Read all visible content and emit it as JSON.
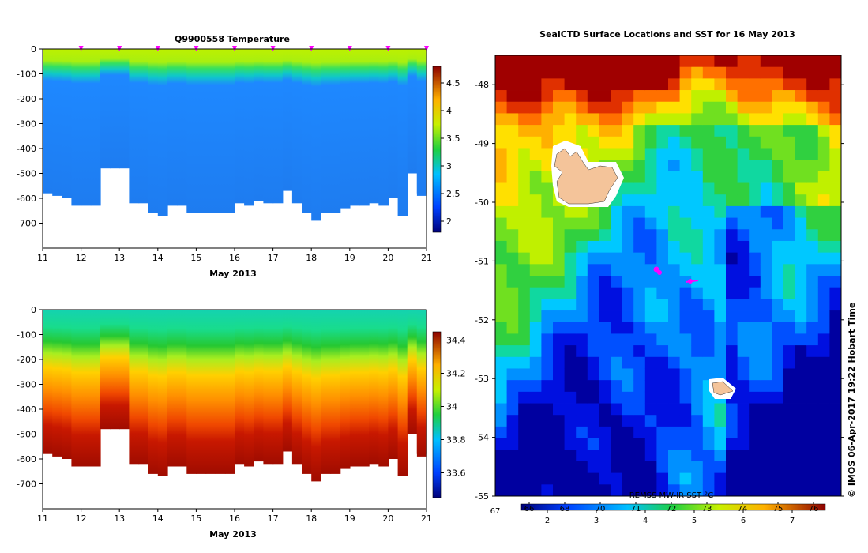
{
  "top_chart": {
    "title": "Q9900558  Temperature",
    "xlabel": "May 2013",
    "x_ticks": [
      "11",
      "12",
      "13",
      "14",
      "15",
      "16",
      "17",
      "18",
      "19",
      "20",
      "21"
    ],
    "y_ticks": [
      "0",
      "-100",
      "-200",
      "-300",
      "-400",
      "-500",
      "-600",
      "-700"
    ],
    "colorbar_ticks": [
      "4.5",
      "4",
      "3.5",
      "3",
      "2.5",
      "2"
    ]
  },
  "bottom_chart": {
    "xlabel": "May 2013",
    "x_ticks": [
      "11",
      "12",
      "13",
      "14",
      "15",
      "16",
      "17",
      "18",
      "19",
      "20",
      "21"
    ],
    "y_ticks": [
      "0",
      "-100",
      "-200",
      "-300",
      "-400",
      "-500",
      "-600",
      "-700"
    ],
    "colorbar_ticks": [
      "34.4",
      "34.2",
      "34",
      "33.8",
      "33.6"
    ]
  },
  "map": {
    "title": "SealCTD Surface Locations and SST for 16 May 2013",
    "lat_ticks": [
      "-48",
      "-49",
      "-50",
      "-51",
      "-52",
      "-53",
      "-54",
      "-55"
    ],
    "left_label": "67",
    "colorbar_label": "REMSS MW-IR SST °C",
    "colorbar_top_ticks": [
      "66",
      "68",
      "70",
      "71",
      "72",
      "73",
      "74",
      "75",
      "76"
    ],
    "colorbar_bottom_ticks": [
      "2",
      "3",
      "4",
      "5",
      "6",
      "7"
    ],
    "credit": "© IMOS 06-Apr-2017 19:22 Hobart Time",
    "colors": {
      "marker": "#ff00ff",
      "land": "#f4c49a"
    }
  },
  "chart_data": [
    {
      "type": "heatmap",
      "title": "Q9900558  Temperature",
      "xlabel": "May 2013",
      "ylabel": "",
      "xlim": [
        11,
        21
      ],
      "ylim": [
        -800,
        0
      ],
      "colorbar_range": [
        1.8,
        4.8
      ],
      "profile_days": [
        11.0,
        11.25,
        11.5,
        11.75,
        12.0,
        12.25,
        12.5,
        12.75,
        13.0,
        13.25,
        13.5,
        13.75,
        14.0,
        14.25,
        14.5,
        14.75,
        15.0,
        15.25,
        15.5,
        15.75,
        16.0,
        16.25,
        16.5,
        16.75,
        17.0,
        17.25,
        17.5,
        17.75,
        18.0,
        18.25,
        18.5,
        18.75,
        19.0,
        19.25,
        19.5,
        19.75,
        20.0,
        20.25,
        20.5,
        20.75,
        21.0
      ],
      "max_depth_m": [
        -580,
        -590,
        -600,
        -630,
        -630,
        -630,
        -480,
        -480,
        -480,
        -620,
        -620,
        -660,
        -670,
        -630,
        -630,
        -660,
        -660,
        -660,
        -660,
        -660,
        -620,
        -630,
        -610,
        -620,
        -620,
        -570,
        -620,
        -660,
        -690,
        -660,
        -660,
        -640,
        -630,
        -630,
        -620,
        -630,
        -600,
        -670,
        -500,
        -580,
        -590
      ],
      "surface_temp": 4.1,
      "deep_temp": 2.4,
      "markers_days": [
        12,
        13,
        14,
        15,
        16,
        17,
        18,
        19,
        20,
        21
      ]
    },
    {
      "type": "heatmap",
      "title": "",
      "xlabel": "May 2013",
      "ylabel": "",
      "xlim": [
        11,
        21
      ],
      "ylim": [
        -800,
        0
      ],
      "colorbar_range": [
        33.45,
        34.45
      ],
      "profile_days": [
        11.0,
        11.25,
        11.5,
        11.75,
        12.0,
        12.25,
        12.5,
        12.75,
        13.0,
        13.25,
        13.5,
        13.75,
        14.0,
        14.25,
        14.5,
        14.75,
        15.0,
        15.25,
        15.5,
        15.75,
        16.0,
        16.25,
        16.5,
        16.75,
        17.0,
        17.25,
        17.5,
        17.75,
        18.0,
        18.25,
        18.5,
        18.75,
        19.0,
        19.25,
        19.5,
        19.75,
        20.0,
        20.25,
        20.5,
        20.75,
        21.0
      ],
      "max_depth_m": [
        -580,
        -590,
        -600,
        -630,
        -630,
        -630,
        -480,
        -480,
        -480,
        -620,
        -620,
        -660,
        -670,
        -630,
        -630,
        -660,
        -660,
        -660,
        -660,
        -660,
        -620,
        -630,
        -610,
        -620,
        -620,
        -570,
        -620,
        -660,
        -690,
        -660,
        -660,
        -640,
        -630,
        -630,
        -620,
        -630,
        -600,
        -670,
        -500,
        -580,
        -590
      ],
      "surface_sal": 33.75,
      "deep_sal": 34.4
    },
    {
      "type": "heatmap",
      "title": "SealCTD Surface Locations and SST for 16 May 2013",
      "ylim": [
        -55,
        -47.5
      ],
      "colorbar_range_c": [
        1.5,
        8
      ],
      "marker_positions": [
        {
          "lat": -50.93,
          "label": ""
        },
        {
          "lat": -51.13,
          "label": ""
        }
      ]
    }
  ]
}
